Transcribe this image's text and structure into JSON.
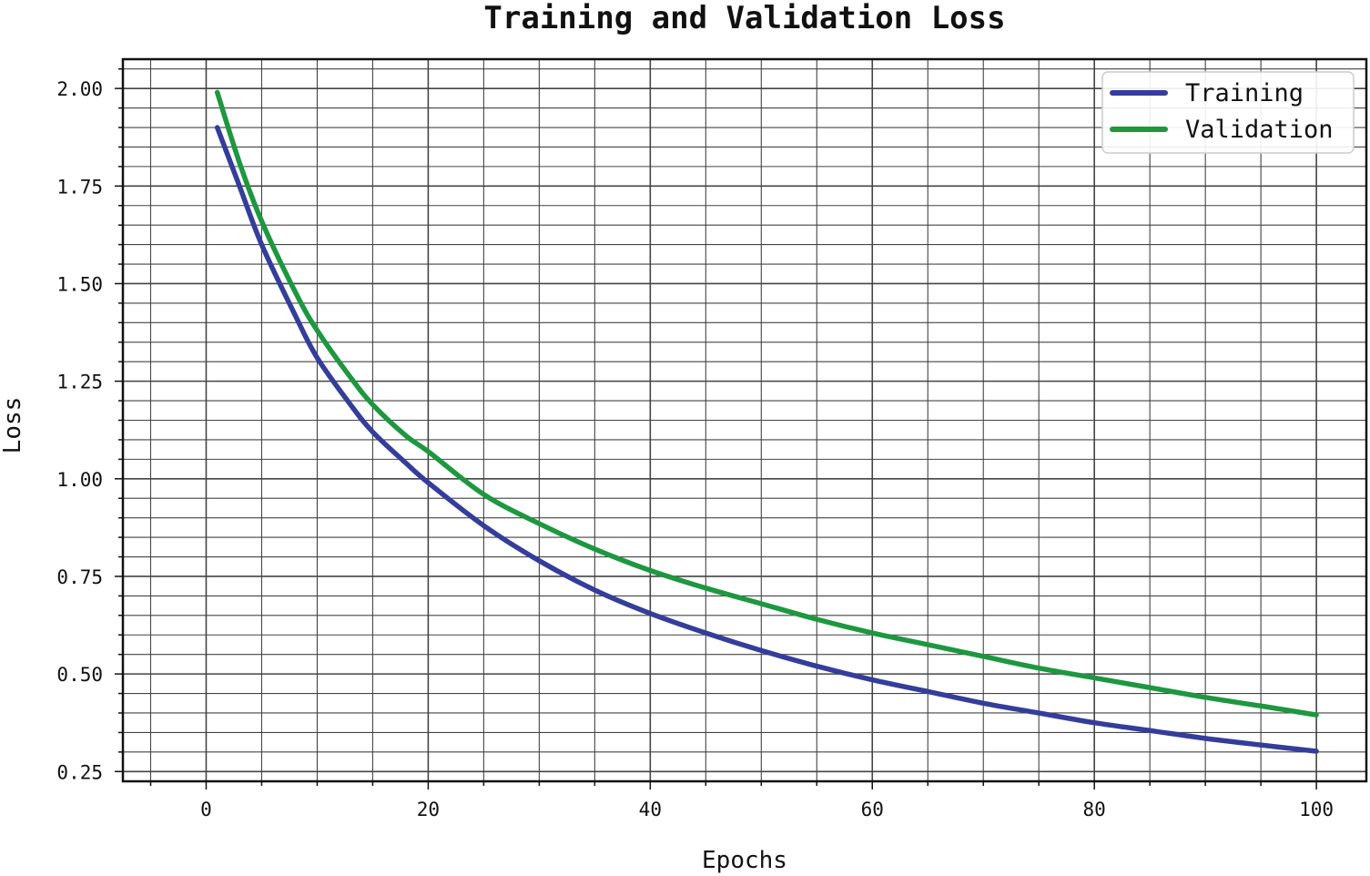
{
  "chart_data": {
    "type": "line",
    "title": "Training and Validation Loss",
    "xlabel": "Epochs",
    "ylabel": "Loss",
    "xlim": [
      -7.5,
      104.5
    ],
    "ylim": [
      0.225,
      2.075
    ],
    "x_major_ticks": [
      0,
      20,
      40,
      60,
      80,
      100
    ],
    "x_tick_labels": [
      "0",
      "20",
      "40",
      "60",
      "80",
      "100"
    ],
    "x_minor_step": 5,
    "y_major_ticks": [
      0.25,
      0.5,
      0.75,
      1.0,
      1.25,
      1.5,
      1.75,
      2.0
    ],
    "y_tick_labels": [
      "0.25",
      "0.50",
      "0.75",
      "1.00",
      "1.25",
      "1.50",
      "1.75",
      "2.00"
    ],
    "y_minor_step": 0.05,
    "grid": true,
    "legend_position": "top-right",
    "series": [
      {
        "name": "Training",
        "color": "#353d9a",
        "x": [
          1,
          3,
          5,
          8,
          10,
          13,
          15,
          18,
          20,
          25,
          30,
          35,
          40,
          45,
          50,
          55,
          60,
          65,
          70,
          75,
          80,
          85,
          90,
          95,
          100
        ],
        "values": [
          1.9,
          1.75,
          1.6,
          1.42,
          1.31,
          1.19,
          1.12,
          1.04,
          0.99,
          0.88,
          0.79,
          0.715,
          0.655,
          0.605,
          0.56,
          0.52,
          0.485,
          0.455,
          0.425,
          0.4,
          0.375,
          0.355,
          0.335,
          0.318,
          0.302
        ]
      },
      {
        "name": "Validation",
        "color": "#1e9740",
        "x": [
          1,
          3,
          5,
          8,
          10,
          13,
          15,
          18,
          20,
          25,
          30,
          35,
          40,
          45,
          50,
          55,
          60,
          65,
          70,
          75,
          80,
          85,
          90,
          95,
          100
        ],
        "values": [
          1.99,
          1.81,
          1.66,
          1.48,
          1.38,
          1.26,
          1.19,
          1.11,
          1.07,
          0.96,
          0.885,
          0.82,
          0.765,
          0.72,
          0.68,
          0.64,
          0.605,
          0.575,
          0.545,
          0.515,
          0.49,
          0.465,
          0.44,
          0.418,
          0.395
        ]
      }
    ]
  }
}
